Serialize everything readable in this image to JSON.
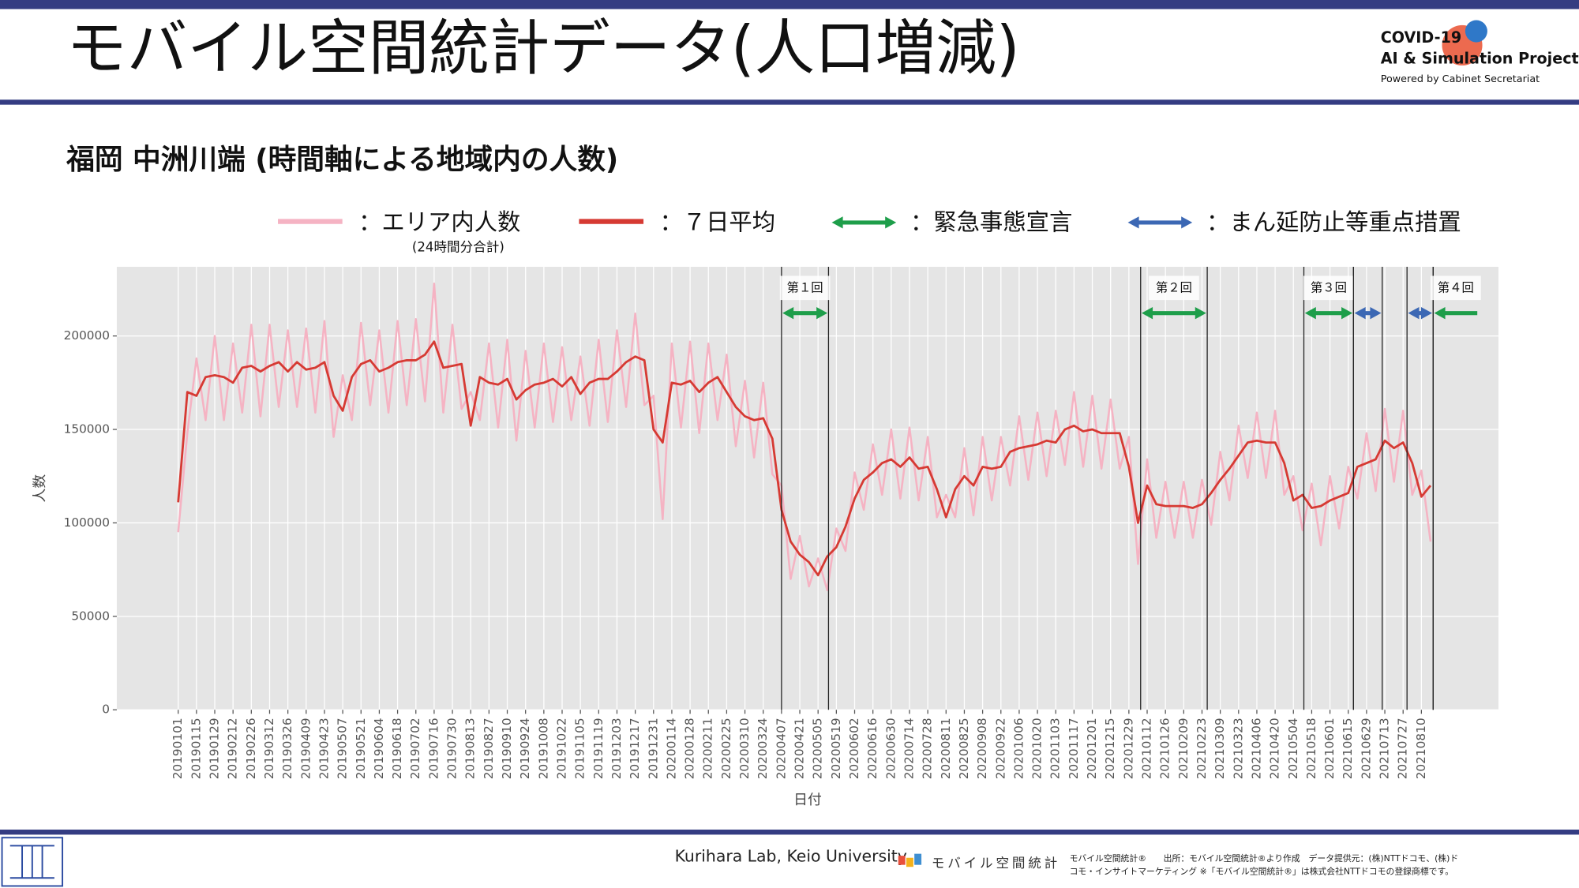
{
  "header": {
    "title": "モバイル空間統計データ(人口増減)",
    "logo_lines": [
      "COVID-19",
      "AI & Simulation Project",
      "Powered by Cabinet Secretariat"
    ]
  },
  "chart_data": {
    "type": "line",
    "title": "福岡 中洲川端 (時間軸による地域内の人数)",
    "x_label": "日付",
    "y_label": "人数",
    "legend_note": "(24時間分合計)",
    "x": [
      "20190101",
      "20190108",
      "20190115",
      "20190122",
      "20190129",
      "20190205",
      "20190212",
      "20190219",
      "20190226",
      "20190305",
      "20190312",
      "20190319",
      "20190326",
      "20190402",
      "20190409",
      "20190416",
      "20190423",
      "20190430",
      "20190507",
      "20190514",
      "20190521",
      "20190528",
      "20190604",
      "20190611",
      "20190618",
      "20190625",
      "20190702",
      "20190709",
      "20190716",
      "20190723",
      "20190730",
      "20190806",
      "20190813",
      "20190820",
      "20190827",
      "20190903",
      "20190910",
      "20190917",
      "20190924",
      "20191001",
      "20191008",
      "20191015",
      "20191022",
      "20191029",
      "20191105",
      "20191112",
      "20191119",
      "20191126",
      "20191203",
      "20191210",
      "20191217",
      "20191224",
      "20191231",
      "20200107",
      "20200114",
      "20200121",
      "20200128",
      "20200204",
      "20200211",
      "20200218",
      "20200225",
      "20200303",
      "20200310",
      "20200317",
      "20200324",
      "20200331",
      "20200407",
      "20200414",
      "20200421",
      "20200428",
      "20200505",
      "20200512",
      "20200519",
      "20200526",
      "20200602",
      "20200609",
      "20200616",
      "20200623",
      "20200630",
      "20200707",
      "20200714",
      "20200721",
      "20200728",
      "20200804",
      "20200811",
      "20200818",
      "20200825",
      "20200901",
      "20200908",
      "20200915",
      "20200922",
      "20200929",
      "20201006",
      "20201013",
      "20201020",
      "20201027",
      "20201103",
      "20201110",
      "20201117",
      "20201124",
      "20201201",
      "20201208",
      "20201215",
      "20201222",
      "20201229",
      "20210105",
      "20210112",
      "20210119",
      "20210126",
      "20210202",
      "20210209",
      "20210216",
      "20210223",
      "20210302",
      "20210309",
      "20210316",
      "20210323",
      "20210330",
      "20210406",
      "20210413",
      "20210420",
      "20210427",
      "20210504",
      "20210511",
      "20210518",
      "20210525",
      "20210601",
      "20210608",
      "20210615",
      "20210622",
      "20210629",
      "20210706",
      "20210713",
      "20210720",
      "20210727",
      "20210803",
      "20210810",
      "20210817"
    ],
    "series": [
      {
        "name": "：エリア内人数",
        "color": "#f5b3c3",
        "width": 2,
        "values": [
          95000,
          148000,
          188000,
          155000,
          200000,
          155000,
          196000,
          159000,
          206000,
          157000,
          206000,
          162000,
          203000,
          162000,
          204000,
          159000,
          208000,
          146000,
          179000,
          155000,
          207000,
          163000,
          203000,
          159000,
          208000,
          163000,
          209000,
          165000,
          228000,
          159000,
          206000,
          161000,
          170000,
          155000,
          196000,
          151000,
          198000,
          144000,
          192000,
          151000,
          196000,
          154000,
          194000,
          155000,
          189000,
          152000,
          198000,
          154000,
          203000,
          162000,
          212000,
          163000,
          168000,
          102000,
          196000,
          151000,
          197000,
          148000,
          196000,
          155000,
          190000,
          141000,
          176000,
          135000,
          175000,
          126000,
          120000,
          70000,
          93000,
          66000,
          81000,
          64000,
          97000,
          85000,
          127000,
          107000,
          142000,
          115000,
          150000,
          113000,
          151000,
          112000,
          146000,
          103000,
          115000,
          103000,
          140000,
          104000,
          146000,
          112000,
          146000,
          120000,
          157000,
          123000,
          159000,
          125000,
          160000,
          131000,
          170000,
          130000,
          168000,
          129000,
          166000,
          129000,
          146000,
          78000,
          134000,
          92000,
          122000,
          92000,
          122000,
          92000,
          123000,
          99000,
          138000,
          112000,
          152000,
          124000,
          159000,
          124000,
          160000,
          115000,
          125000,
          96000,
          121000,
          88000,
          125000,
          97000,
          130000,
          113000,
          148000,
          117000,
          161000,
          122000,
          160000,
          115000,
          128000,
          90000
        ]
      },
      {
        "name": "：７日平均",
        "color": "#d63a33",
        "width": 2.2,
        "values": [
          111000,
          170000,
          168000,
          178000,
          179000,
          178000,
          175000,
          183000,
          184000,
          181000,
          184000,
          186000,
          181000,
          186000,
          182000,
          183000,
          186000,
          168000,
          160000,
          178000,
          185000,
          187000,
          181000,
          183000,
          186000,
          187000,
          187000,
          190000,
          197000,
          183000,
          184000,
          185000,
          152000,
          178000,
          175000,
          174000,
          177000,
          166000,
          171000,
          174000,
          175000,
          177000,
          173000,
          178000,
          169000,
          175000,
          177000,
          177000,
          181000,
          186000,
          189000,
          187000,
          150000,
          143000,
          175000,
          174000,
          176000,
          170000,
          175000,
          178000,
          170000,
          162000,
          157000,
          155000,
          156000,
          145000,
          107000,
          90000,
          83000,
          79000,
          72000,
          82000,
          87000,
          98000,
          113000,
          123000,
          127000,
          132000,
          134000,
          130000,
          135000,
          129000,
          130000,
          118000,
          103000,
          118000,
          125000,
          120000,
          130000,
          129000,
          130000,
          138000,
          140000,
          141000,
          142000,
          144000,
          143000,
          150000,
          152000,
          149000,
          150000,
          148000,
          148000,
          148000,
          130000,
          100000,
          120000,
          110000,
          109000,
          109000,
          109000,
          108000,
          110000,
          116000,
          123000,
          129000,
          136000,
          143000,
          144000,
          143000,
          143000,
          132000,
          112000,
          115000,
          108000,
          109000,
          112000,
          114000,
          116000,
          130000,
          132000,
          134000,
          144000,
          140000,
          143000,
          132000,
          114000,
          120000
        ]
      }
    ],
    "period_legend": [
      {
        "name": "：緊急事態宣言",
        "color": "#1e9e4a"
      },
      {
        "name": "：まん延防止等重点措置",
        "color": "#3c68b4"
      }
    ],
    "periods": [
      {
        "label": "第１回",
        "start": "20200407",
        "end": "20200513",
        "color": "#1e9e4a"
      },
      {
        "label": "第２回",
        "start": "20210107",
        "end": "20210227",
        "color": "#1e9e4a"
      },
      {
        "label": "第３回",
        "start": "20210512",
        "end": "20210619",
        "color": "#1e9e4a"
      },
      {
        "start": "20210619",
        "end": "20210711",
        "color": "#3c68b4"
      },
      {
        "start": "20210730",
        "end": "20210819",
        "color": "#3c68b4"
      },
      {
        "label": "第４回",
        "start": "20210819",
        "color": "#1e9e4a"
      }
    ],
    "xlim": [
      "20181115",
      "20211008"
    ],
    "xticks": [
      "20190101",
      "20190115",
      "20190129",
      "20190212",
      "20190226",
      "20190312",
      "20190326",
      "20190409",
      "20190423",
      "20190507",
      "20190521",
      "20190604",
      "20190618",
      "20190702",
      "20190716",
      "20190730",
      "20190813",
      "20190827",
      "20190910",
      "20190924",
      "20191008",
      "20191022",
      "20191105",
      "20191119",
      "20191203",
      "20191217",
      "20191231",
      "20200114",
      "20200128",
      "20200211",
      "20200225",
      "20200310",
      "20200324",
      "20200407",
      "20200421",
      "20200505",
      "20200519",
      "20200602",
      "20200616",
      "20200630",
      "20200714",
      "20200728",
      "20200811",
      "20200825",
      "20200908",
      "20200922",
      "20201006",
      "20201020",
      "20201103",
      "20201117",
      "20201201",
      "20201215",
      "20201229",
      "20210112",
      "20210126",
      "20210209",
      "20210223",
      "20210309",
      "20210323",
      "20210406",
      "20210420",
      "20210504",
      "20210518",
      "20210601",
      "20210615",
      "20210629",
      "20210713",
      "20210727",
      "20210810"
    ],
    "ylim": [
      0,
      237000
    ],
    "yticks": [
      0,
      50000,
      100000,
      150000,
      200000
    ],
    "grid": true
  },
  "footer": {
    "credit": "Kurihara Lab, Keio University",
    "brand": "モバイル空間統計",
    "notes": [
      "モバイル空間統計®　　出所：モバイル空間統計®より作成　データ提供元：(株)NTTドコモ、(株)ド",
      "コモ・インサイトマーケティング ※「モバイル空間統計®」は株式会社NTTドコモの登録商標です。"
    ]
  }
}
